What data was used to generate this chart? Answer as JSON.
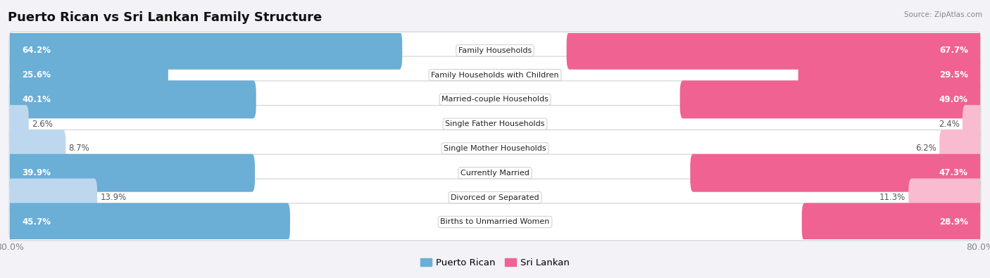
{
  "title": "Puerto Rican vs Sri Lankan Family Structure",
  "source": "Source: ZipAtlas.com",
  "categories": [
    "Family Households",
    "Family Households with Children",
    "Married-couple Households",
    "Single Father Households",
    "Single Mother Households",
    "Currently Married",
    "Divorced or Separated",
    "Births to Unmarried Women"
  ],
  "puerto_rican": [
    64.2,
    25.6,
    40.1,
    2.6,
    8.7,
    39.9,
    13.9,
    45.7
  ],
  "sri_lankan": [
    67.7,
    29.5,
    49.0,
    2.4,
    6.2,
    47.3,
    11.3,
    28.9
  ],
  "max_val": 80.0,
  "blue_dark": "#6baed6",
  "blue_light": "#bdd7ee",
  "pink_dark": "#f06292",
  "pink_light": "#f8bbd0",
  "bg_color": "#f2f2f7",
  "row_bg": "#ffffff",
  "title_fontsize": 13,
  "label_fontsize": 8.5,
  "tick_fontsize": 9,
  "legend_fontsize": 9.5,
  "blue_threshold": 20.0,
  "pink_threshold": 20.0
}
